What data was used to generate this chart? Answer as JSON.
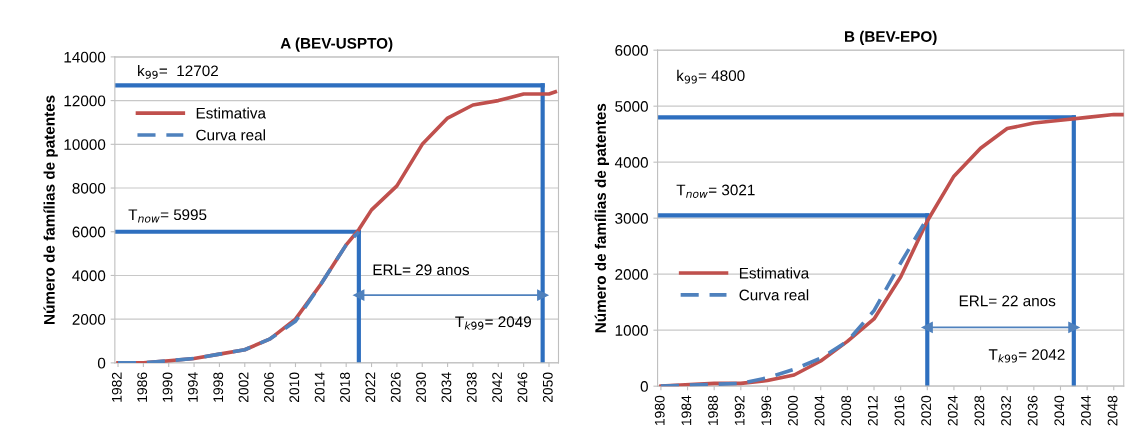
{
  "chart_data": [
    {
      "type": "line",
      "title": "A (BEV-USPTO)",
      "ylabel": "Número de famílias de patentes",
      "xlim": [
        1981.5,
        2051.5
      ],
      "xticks": [
        1982,
        1986,
        1990,
        1994,
        1998,
        2002,
        2006,
        2010,
        2014,
        2018,
        2022,
        2026,
        2030,
        2034,
        2038,
        2042,
        2046,
        2050
      ],
      "ylim": [
        0,
        14000
      ],
      "yticks": [
        0,
        2000,
        4000,
        6000,
        8000,
        10000,
        12000,
        14000
      ],
      "grid": "y",
      "legend": "top left",
      "series": [
        {
          "name": "Estimativa",
          "color": "#c0504d",
          "line_style": "solid",
          "x": [
            1982,
            1986,
            1990,
            1994,
            1998,
            2002,
            2006,
            2010,
            2014,
            2018,
            2020,
            2022,
            2026,
            2030,
            2034,
            2038,
            2042,
            2046,
            2050,
            2051
          ],
          "values": [
            0,
            0,
            100,
            200,
            400,
            600,
            1100,
            2000,
            3600,
            5400,
            6100,
            7000,
            8100,
            10000,
            11200,
            11800,
            12000,
            12300,
            12300,
            12400
          ]
        },
        {
          "name": "Curva real",
          "color": "#4f81bd",
          "line_style": "dashed",
          "x": [
            1982,
            1986,
            1990,
            1994,
            1998,
            2002,
            2006,
            2010,
            2014,
            2018,
            2020
          ],
          "values": [
            0,
            0,
            100,
            200,
            400,
            600,
            1100,
            1900,
            3600,
            5400,
            6000
          ]
        },
        {
          "color": "#2e6fbf",
          "line_style": "solid",
          "x": [
            1981.5,
            2020
          ],
          "values": [
            6000,
            6000
          ]
        },
        {
          "color": "#2e6fbf",
          "line_style": "solid",
          "x": [
            2020,
            2020
          ],
          "values": [
            0,
            6000
          ]
        },
        {
          "color": "#2e6fbf",
          "line_style": "solid",
          "x": [
            1981.5,
            2049
          ],
          "values": [
            12700,
            12700
          ]
        },
        {
          "color": "#2e6fbf",
          "line_style": "solid",
          "x": [
            2049,
            2049
          ],
          "values": [
            0,
            12700
          ]
        },
        {
          "color": "#4f81bd",
          "line_style": "solid",
          "marker": "triangle",
          "x": [
            2020,
            2049
          ],
          "values": [
            3100,
            3100
          ]
        }
      ],
      "annotations": [
        "k$_{99}$=  12702",
        "T$_{now}$= 5995",
        "ERL= 29 anos",
        "T$_{k99}$= 2049"
      ]
    },
    {
      "type": "line",
      "title": "B (BEV-EPO)",
      "ylabel": "Número de famílias de patentes",
      "xlim": [
        1979.5,
        2049.5
      ],
      "xticks": [
        1980,
        1984,
        1988,
        1992,
        1996,
        2000,
        2004,
        2008,
        2012,
        2016,
        2020,
        2024,
        2028,
        2032,
        2036,
        2040,
        2044,
        2048
      ],
      "ylim": [
        0,
        6000
      ],
      "yticks": [
        0,
        1000,
        2000,
        3000,
        4000,
        5000,
        6000
      ],
      "grid": "y",
      "legend": "left",
      "series": [
        {
          "name": "Estimativa",
          "color": "#c0504d",
          "line_style": "solid",
          "x": [
            1980,
            1988,
            1992,
            1996,
            2000,
            2004,
            2008,
            2012,
            2016,
            2020,
            2024,
            2028,
            2032,
            2036,
            2040,
            2044,
            2048,
            2049.5
          ],
          "values": [
            0,
            50,
            50,
            100,
            200,
            450,
            800,
            1200,
            1950,
            2950,
            3750,
            4250,
            4600,
            4700,
            4750,
            4800,
            4850,
            4850
          ]
        },
        {
          "name": "Curva real",
          "color": "#4f81bd",
          "line_style": "dashed",
          "x": [
            1980,
            1992,
            1996,
            2000,
            2004,
            2008,
            2012,
            2016,
            2018,
            2020
          ],
          "values": [
            0,
            50,
            150,
            300,
            500,
            800,
            1350,
            2200,
            2600,
            3000
          ]
        },
        {
          "color": "#2e6fbf",
          "line_style": "solid",
          "x": [
            1979.5,
            2020
          ],
          "values": [
            3050,
            3050
          ]
        },
        {
          "color": "#2e6fbf",
          "line_style": "solid",
          "x": [
            2020,
            2020
          ],
          "values": [
            0,
            3050
          ]
        },
        {
          "color": "#2e6fbf",
          "line_style": "solid",
          "x": [
            1979.5,
            2042
          ],
          "values": [
            4800,
            4800
          ]
        },
        {
          "color": "#2e6fbf",
          "line_style": "solid",
          "x": [
            2042,
            2042
          ],
          "values": [
            0,
            4800
          ]
        },
        {
          "color": "#4f81bd",
          "line_style": "solid",
          "marker": "triangle",
          "x": [
            2020,
            2042
          ],
          "values": [
            1050,
            1050
          ]
        }
      ],
      "annotations": [
        "k$_{99}$= 4800",
        "T$_{now}$= 3021",
        "ERL= 22 anos",
        "T$_{k99}$= 2042"
      ]
    }
  ]
}
